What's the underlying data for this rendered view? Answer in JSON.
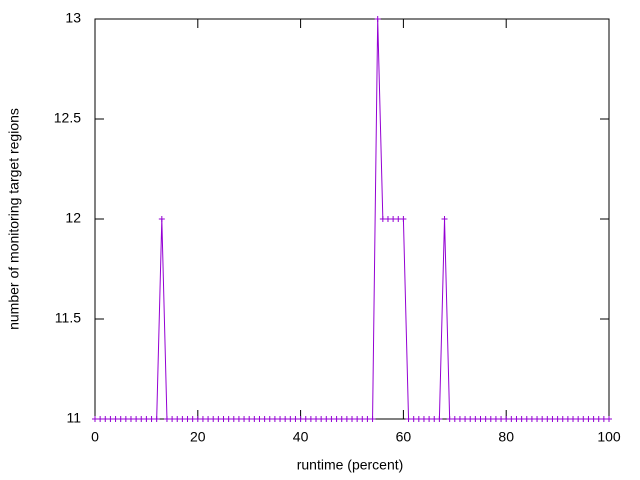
{
  "chart_data": {
    "type": "line",
    "xlabel": "runtime (percent)",
    "ylabel": "number of monitoring target regions",
    "x": [
      0,
      1,
      2,
      3,
      4,
      5,
      6,
      7,
      8,
      9,
      10,
      11,
      12,
      13,
      14,
      15,
      16,
      17,
      18,
      19,
      20,
      21,
      22,
      23,
      24,
      25,
      26,
      27,
      28,
      29,
      30,
      31,
      32,
      33,
      34,
      35,
      36,
      37,
      38,
      39,
      40,
      41,
      42,
      43,
      44,
      45,
      46,
      47,
      48,
      49,
      50,
      51,
      52,
      53,
      54,
      55,
      56,
      57,
      58,
      59,
      60,
      61,
      62,
      63,
      64,
      65,
      66,
      67,
      68,
      69,
      70,
      71,
      72,
      73,
      74,
      75,
      76,
      77,
      78,
      79,
      80,
      81,
      82,
      83,
      84,
      85,
      86,
      87,
      88,
      89,
      90,
      91,
      92,
      93,
      94,
      95,
      96,
      97,
      98,
      99,
      100
    ],
    "series": [
      {
        "color": "#9400d3",
        "values": [
          11,
          11,
          11,
          11,
          11,
          11,
          11,
          11,
          11,
          11,
          11,
          11,
          11,
          12,
          11,
          11,
          11,
          11,
          11,
          11,
          11,
          11,
          11,
          11,
          11,
          11,
          11,
          11,
          11,
          11,
          11,
          11,
          11,
          11,
          11,
          11,
          11,
          11,
          11,
          11,
          11,
          11,
          11,
          11,
          11,
          11,
          11,
          11,
          11,
          11,
          11,
          11,
          11,
          11,
          11,
          13,
          12,
          12,
          12,
          12,
          12,
          11,
          11,
          11,
          11,
          11,
          11,
          11,
          12,
          11,
          11,
          11,
          11,
          11,
          11,
          11,
          11,
          11,
          11,
          11,
          11,
          11,
          11,
          11,
          11,
          11,
          11,
          11,
          11,
          11,
          11,
          11,
          11,
          11,
          11,
          11,
          11,
          11,
          11,
          11,
          11
        ]
      }
    ],
    "xlim": [
      0,
      100
    ],
    "xticks": [
      0,
      20,
      40,
      60,
      80,
      100
    ],
    "ylim": [
      11,
      13
    ],
    "yticks": [
      11,
      11.5,
      12,
      12.5,
      13
    ],
    "grid": false
  }
}
